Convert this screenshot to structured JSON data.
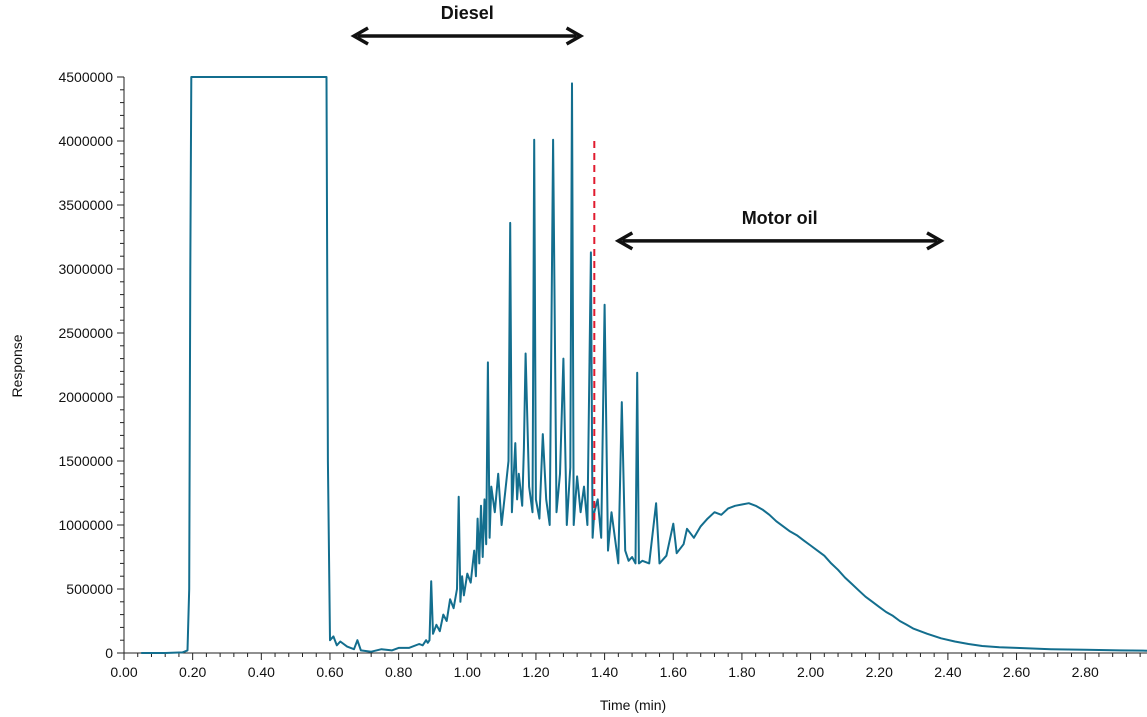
{
  "chart_data": {
    "type": "line",
    "xlabel": "Time (min)",
    "ylabel": "Response",
    "xlim": [
      0.0,
      2.98
    ],
    "ylim": [
      0,
      4500000
    ],
    "x_ticks": [
      "0.00",
      "0.20",
      "0.40",
      "0.60",
      "0.80",
      "1.00",
      "1.20",
      "1.40",
      "1.60",
      "1.80",
      "2.00",
      "2.20",
      "2.40",
      "2.60",
      "2.80"
    ],
    "y_ticks": [
      "0",
      "500000",
      "1000000",
      "1500000",
      "2000000",
      "2500000",
      "3000000",
      "3500000",
      "4000000",
      "4500000"
    ],
    "grid": false,
    "series": [
      {
        "color": "#136e8e",
        "points": [
          [
            0.05,
            0
          ],
          [
            0.12,
            0
          ],
          [
            0.17,
            5000
          ],
          [
            0.185,
            20000
          ],
          [
            0.19,
            500000
          ],
          [
            0.193,
            3000000
          ],
          [
            0.196,
            4500000
          ],
          [
            0.59,
            4500000
          ],
          [
            0.594,
            1500000
          ],
          [
            0.6,
            100000
          ],
          [
            0.61,
            130000
          ],
          [
            0.62,
            60000
          ],
          [
            0.63,
            90000
          ],
          [
            0.65,
            50000
          ],
          [
            0.67,
            30000
          ],
          [
            0.68,
            100000
          ],
          [
            0.69,
            20000
          ],
          [
            0.72,
            10000
          ],
          [
            0.75,
            30000
          ],
          [
            0.78,
            20000
          ],
          [
            0.8,
            40000
          ],
          [
            0.83,
            40000
          ],
          [
            0.86,
            70000
          ],
          [
            0.87,
            60000
          ],
          [
            0.88,
            100000
          ],
          [
            0.885,
            80000
          ],
          [
            0.89,
            100000
          ],
          [
            0.895,
            560000
          ],
          [
            0.9,
            150000
          ],
          [
            0.91,
            220000
          ],
          [
            0.92,
            170000
          ],
          [
            0.93,
            300000
          ],
          [
            0.94,
            250000
          ],
          [
            0.95,
            420000
          ],
          [
            0.96,
            350000
          ],
          [
            0.97,
            500000
          ],
          [
            0.975,
            1220000
          ],
          [
            0.98,
            400000
          ],
          [
            0.985,
            600000
          ],
          [
            0.99,
            450000
          ],
          [
            1.0,
            620000
          ],
          [
            1.01,
            550000
          ],
          [
            1.02,
            800000
          ],
          [
            1.025,
            600000
          ],
          [
            1.03,
            1050000
          ],
          [
            1.035,
            700000
          ],
          [
            1.04,
            1150000
          ],
          [
            1.045,
            750000
          ],
          [
            1.05,
            1200000
          ],
          [
            1.055,
            850000
          ],
          [
            1.06,
            2270000
          ],
          [
            1.065,
            900000
          ],
          [
            1.07,
            1300000
          ],
          [
            1.08,
            1100000
          ],
          [
            1.09,
            1400000
          ],
          [
            1.1,
            1000000
          ],
          [
            1.11,
            1250000
          ],
          [
            1.12,
            1500000
          ],
          [
            1.125,
            3360000
          ],
          [
            1.13,
            1100000
          ],
          [
            1.14,
            1640000
          ],
          [
            1.145,
            1200000
          ],
          [
            1.15,
            1400000
          ],
          [
            1.16,
            1150000
          ],
          [
            1.165,
            1600000
          ],
          [
            1.17,
            2340000
          ],
          [
            1.18,
            1300000
          ],
          [
            1.19,
            1100000
          ],
          [
            1.195,
            4010000
          ],
          [
            1.2,
            1200000
          ],
          [
            1.21,
            1050000
          ],
          [
            1.22,
            1710000
          ],
          [
            1.23,
            1200000
          ],
          [
            1.24,
            1000000
          ],
          [
            1.25,
            4010000
          ],
          [
            1.26,
            1100000
          ],
          [
            1.27,
            1400000
          ],
          [
            1.28,
            2300000
          ],
          [
            1.29,
            1000000
          ],
          [
            1.3,
            1450000
          ],
          [
            1.305,
            4450000
          ],
          [
            1.31,
            1000000
          ],
          [
            1.32,
            1380000
          ],
          [
            1.33,
            1100000
          ],
          [
            1.34,
            1300000
          ],
          [
            1.35,
            1000000
          ],
          [
            1.36,
            3130000
          ],
          [
            1.365,
            900000
          ],
          [
            1.37,
            1100000
          ],
          [
            1.38,
            1200000
          ],
          [
            1.39,
            900000
          ],
          [
            1.4,
            2720000
          ],
          [
            1.41,
            800000
          ],
          [
            1.42,
            1100000
          ],
          [
            1.43,
            900000
          ],
          [
            1.44,
            700000
          ],
          [
            1.45,
            1960000
          ],
          [
            1.46,
            800000
          ],
          [
            1.47,
            720000
          ],
          [
            1.48,
            750000
          ],
          [
            1.49,
            700000
          ],
          [
            1.495,
            2190000
          ],
          [
            1.5,
            700000
          ],
          [
            1.51,
            720000
          ],
          [
            1.53,
            700000
          ],
          [
            1.55,
            1170000
          ],
          [
            1.56,
            700000
          ],
          [
            1.58,
            760000
          ],
          [
            1.6,
            1010000
          ],
          [
            1.61,
            780000
          ],
          [
            1.63,
            850000
          ],
          [
            1.64,
            970000
          ],
          [
            1.66,
            900000
          ],
          [
            1.68,
            990000
          ],
          [
            1.7,
            1050000
          ],
          [
            1.72,
            1100000
          ],
          [
            1.74,
            1080000
          ],
          [
            1.76,
            1130000
          ],
          [
            1.78,
            1150000
          ],
          [
            1.8,
            1160000
          ],
          [
            1.82,
            1170000
          ],
          [
            1.84,
            1150000
          ],
          [
            1.86,
            1120000
          ],
          [
            1.88,
            1080000
          ],
          [
            1.9,
            1030000
          ],
          [
            1.92,
            990000
          ],
          [
            1.94,
            950000
          ],
          [
            1.96,
            920000
          ],
          [
            1.98,
            880000
          ],
          [
            2.0,
            840000
          ],
          [
            2.02,
            800000
          ],
          [
            2.04,
            760000
          ],
          [
            2.06,
            700000
          ],
          [
            2.08,
            650000
          ],
          [
            2.1,
            590000
          ],
          [
            2.12,
            540000
          ],
          [
            2.14,
            490000
          ],
          [
            2.16,
            440000
          ],
          [
            2.18,
            400000
          ],
          [
            2.2,
            360000
          ],
          [
            2.22,
            320000
          ],
          [
            2.24,
            290000
          ],
          [
            2.26,
            250000
          ],
          [
            2.28,
            220000
          ],
          [
            2.3,
            190000
          ],
          [
            2.34,
            150000
          ],
          [
            2.38,
            115000
          ],
          [
            2.42,
            90000
          ],
          [
            2.46,
            70000
          ],
          [
            2.5,
            55000
          ],
          [
            2.55,
            45000
          ],
          [
            2.6,
            40000
          ],
          [
            2.7,
            30000
          ],
          [
            2.8,
            25000
          ],
          [
            2.9,
            20000
          ],
          [
            2.98,
            18000
          ]
        ]
      }
    ],
    "annotations": [
      {
        "label": "Diesel",
        "from": 0.67,
        "to": 1.33,
        "y": 4820000
      },
      {
        "label": "Motor oil",
        "from": 1.44,
        "to": 2.38,
        "y": 3220000
      }
    ],
    "divider": {
      "x": 1.37,
      "y_from": 1000000,
      "y_to": 4000000,
      "color": "#e01b2e"
    }
  }
}
